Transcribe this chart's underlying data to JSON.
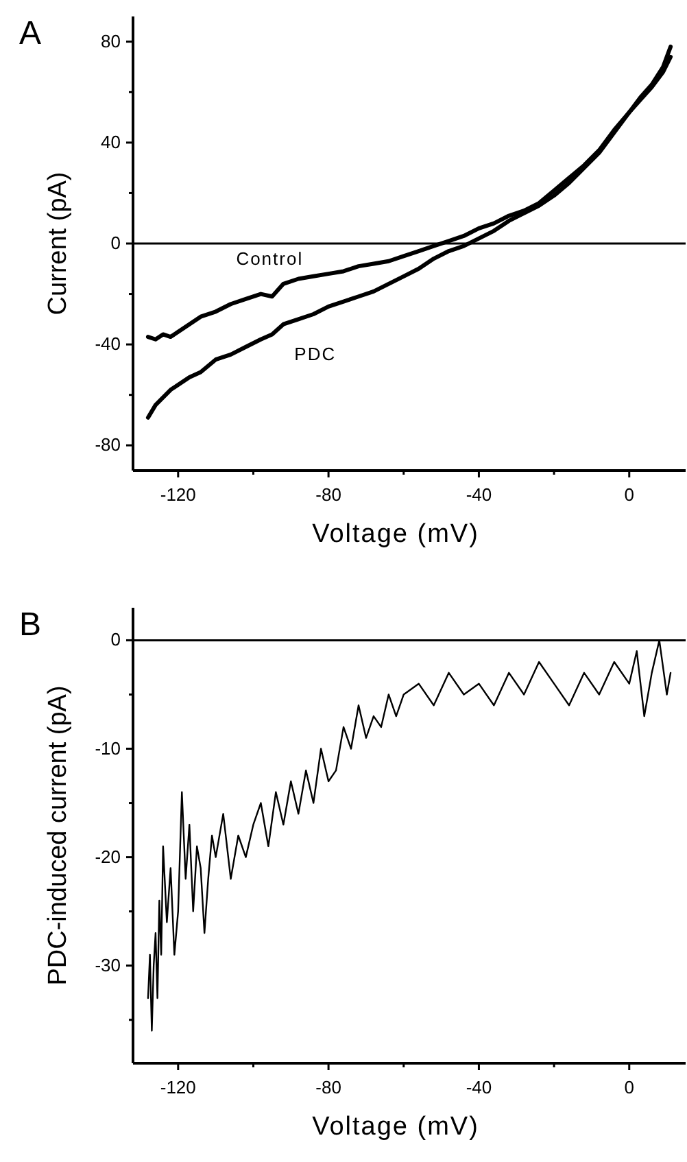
{
  "chart_data": [
    {
      "type": "line",
      "title": "A",
      "xlabel": "Voltage (mV)",
      "ylabel": "Current (pA)",
      "xlim": [
        -132,
        15
      ],
      "ylim": [
        -90,
        90
      ],
      "xticks": [
        -120,
        {
          "value": -100,
          "label": null
        },
        -80,
        {
          "value": -60,
          "label": null
        },
        -40,
        {
          "value": -20,
          "label": null
        },
        0
      ],
      "yticks": [
        -80,
        {
          "value": -60,
          "label": null
        },
        -40,
        {
          "value": -20,
          "label": null
        },
        0,
        {
          "value": 20,
          "label": null
        },
        40,
        {
          "value": 60,
          "label": null
        },
        80
      ],
      "ref_lines": [
        {
          "axis": "y",
          "value": 0,
          "color": "#000000"
        }
      ],
      "grid": false,
      "series": [
        {
          "name": "Control",
          "color": "#000000",
          "x": [
            -128,
            -126,
            -124,
            -122,
            -120,
            -117,
            -114,
            -110,
            -106,
            -102,
            -98,
            -95,
            -92,
            -88,
            -84,
            -80,
            -76,
            -72,
            -68,
            -64,
            -60,
            -56,
            -52,
            -48,
            -44,
            -40,
            -36,
            -32,
            -28,
            -24,
            -20,
            -16,
            -12,
            -8,
            -4,
            0,
            3,
            6,
            9,
            11
          ],
          "values": [
            -37,
            -38,
            -36,
            -37,
            -35,
            -32,
            -29,
            -27,
            -24,
            -22,
            -20,
            -21,
            -16,
            -14,
            -13,
            -12,
            -11,
            -9,
            -8,
            -7,
            -5,
            -3,
            -1,
            1,
            3,
            6,
            8,
            11,
            13,
            16,
            21,
            26,
            31,
            37,
            45,
            52,
            58,
            63,
            70,
            78
          ]
        },
        {
          "name": "PDC",
          "color": "#000000",
          "x": [
            -128,
            -126,
            -124,
            -122,
            -120,
            -117,
            -114,
            -110,
            -106,
            -102,
            -98,
            -95,
            -92,
            -88,
            -84,
            -80,
            -76,
            -72,
            -68,
            -64,
            -60,
            -56,
            -52,
            -48,
            -44,
            -40,
            -36,
            -32,
            -28,
            -24,
            -20,
            -16,
            -12,
            -8,
            -4,
            0,
            3,
            6,
            9,
            11
          ],
          "values": [
            -69,
            -64,
            -61,
            -58,
            -56,
            -53,
            -51,
            -46,
            -44,
            -41,
            -38,
            -36,
            -32,
            -30,
            -28,
            -25,
            -23,
            -21,
            -19,
            -16,
            -13,
            -10,
            -6,
            -3,
            -1,
            2,
            5,
            9,
            12,
            15,
            19,
            24,
            30,
            36,
            44,
            52,
            57,
            62,
            68,
            74
          ]
        }
      ]
    },
    {
      "type": "line",
      "title": "B",
      "xlabel": "Voltage (mV)",
      "ylabel": "PDC-induced current (pA)",
      "xlim": [
        -132,
        15
      ],
      "ylim": [
        -39,
        3
      ],
      "xticks": [
        -120,
        {
          "value": -100,
          "label": null
        },
        -80,
        {
          "value": -60,
          "label": null
        },
        -40,
        {
          "value": -20,
          "label": null
        },
        0
      ],
      "yticks": [
        {
          "value": -35,
          "label": null
        },
        -30,
        {
          "value": -25,
          "label": null
        },
        -20,
        {
          "value": -15,
          "label": null
        },
        -10,
        {
          "value": -5,
          "label": null
        },
        0
      ],
      "ref_lines": [
        {
          "axis": "y",
          "value": 0,
          "color": "#000000"
        }
      ],
      "grid": false,
      "series": [
        {
          "color": "#000000",
          "x": [
            -128,
            -127.5,
            -127,
            -126.5,
            -126,
            -125.5,
            -125,
            -124.5,
            -124,
            -123,
            -122,
            -121,
            -120,
            -119,
            -118,
            -117,
            -116,
            -115,
            -114,
            -113,
            -112,
            -111,
            -110,
            -108,
            -106,
            -104,
            -102,
            -100,
            -98,
            -96,
            -94,
            -92,
            -90,
            -88,
            -86,
            -84,
            -82,
            -80,
            -78,
            -76,
            -74,
            -72,
            -70,
            -68,
            -66,
            -64,
            -62,
            -60,
            -56,
            -52,
            -48,
            -44,
            -40,
            -36,
            -32,
            -28,
            -24,
            -20,
            -16,
            -12,
            -8,
            -4,
            0,
            2,
            4,
            6,
            8,
            10,
            11
          ],
          "values": [
            -33,
            -29,
            -36,
            -30,
            -27,
            -33,
            -24,
            -29,
            -19,
            -26,
            -21,
            -29,
            -25,
            -14,
            -22,
            -17,
            -25,
            -19,
            -21,
            -27,
            -22,
            -18,
            -20,
            -16,
            -22,
            -18,
            -20,
            -17,
            -15,
            -19,
            -14,
            -17,
            -13,
            -16,
            -12,
            -15,
            -10,
            -13,
            -12,
            -8,
            -10,
            -6,
            -9,
            -7,
            -8,
            -5,
            -7,
            -5,
            -4,
            -6,
            -3,
            -5,
            -4,
            -6,
            -3,
            -5,
            -2,
            -4,
            -6,
            -3,
            -5,
            -2,
            -4,
            -1,
            -7,
            -3,
            0,
            -5,
            -3
          ]
        }
      ]
    }
  ]
}
